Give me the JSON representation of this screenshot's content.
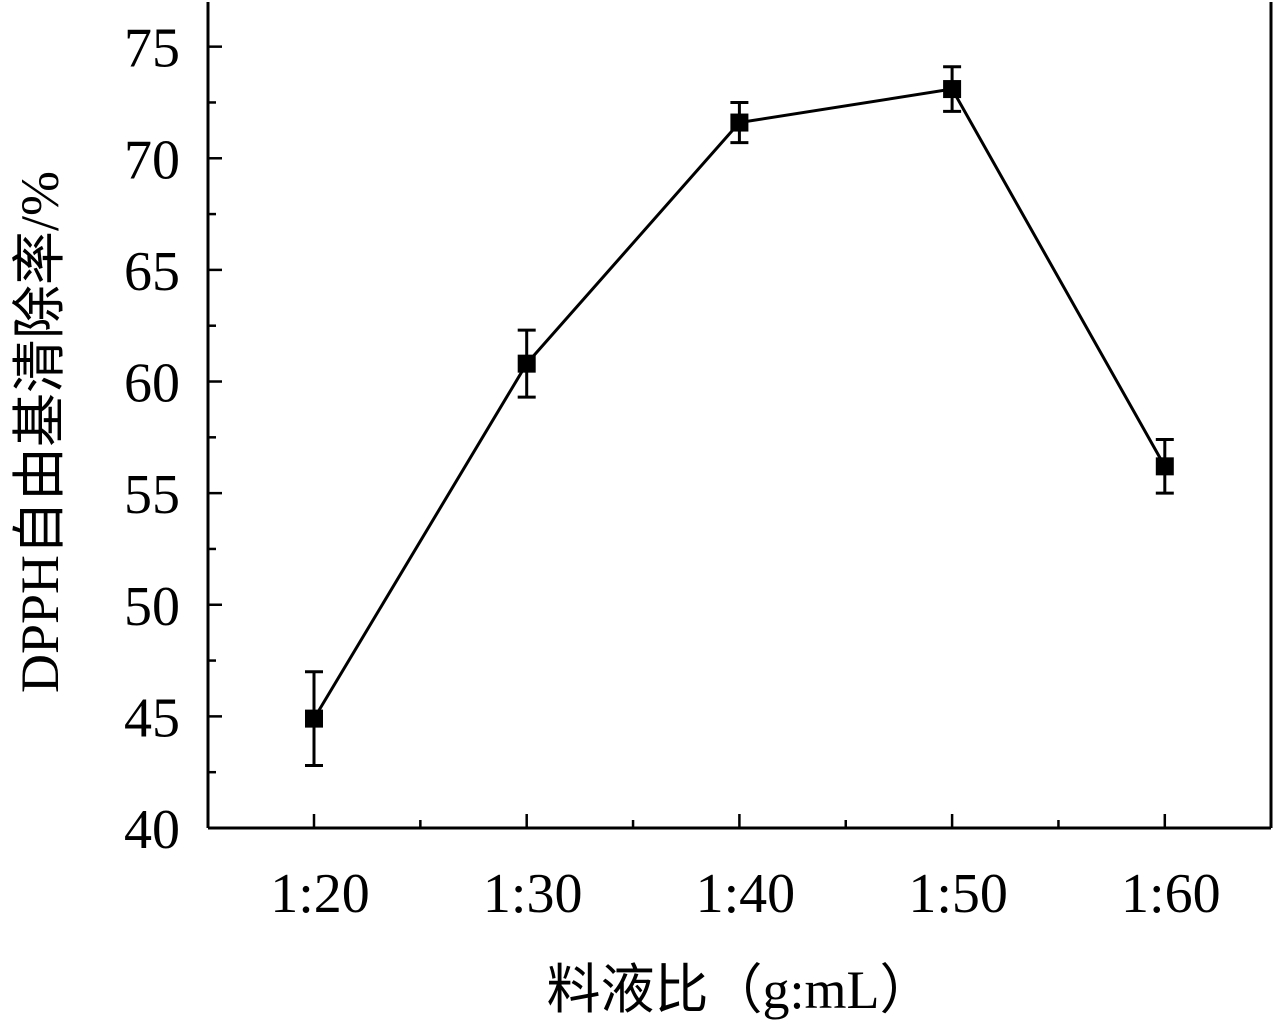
{
  "chart_data": {
    "type": "line",
    "title": "",
    "xlabel": "料液比（g:mL）",
    "ylabel": "DPPH自由基清除率/%",
    "categories": [
      "1:20",
      "1:30",
      "1:40",
      "1:50",
      "1:60"
    ],
    "series": [
      {
        "values": [
          44.9,
          60.8,
          71.6,
          73.1,
          56.2
        ],
        "errors": [
          2.1,
          1.5,
          0.9,
          1.0,
          1.2
        ],
        "marker": "square",
        "color": "#000000"
      }
    ],
    "ylim": [
      40,
      77
    ],
    "yticks": [
      "40",
      "45",
      "50",
      "55",
      "60",
      "65",
      "70",
      "75"
    ],
    "grid": false,
    "legend": "none"
  }
}
